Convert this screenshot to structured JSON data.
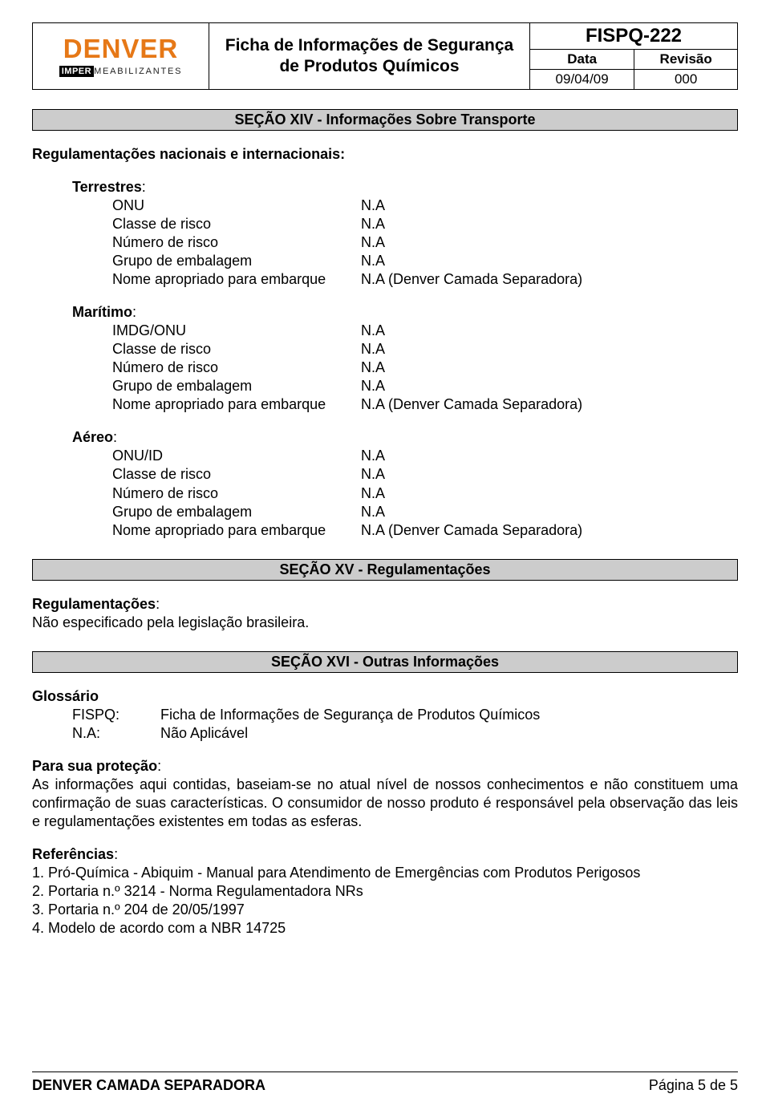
{
  "header": {
    "logo_top": "DENVER",
    "logo_imper": "IMPER",
    "logo_rest": "MEABILIZANTES",
    "title_line1": "Ficha de Informações de Segurança",
    "title_line2": "de Produtos Químicos",
    "fispq": "FISPQ-222",
    "data_label": "Data",
    "revisao_label": "Revisão",
    "data_value": "09/04/09",
    "revisao_value": "000"
  },
  "section14": {
    "title": "SEÇÃO XIV - Informações Sobre Transporte",
    "reg_heading": "Regulamentações nacionais e internacionais:",
    "terrestres": {
      "label": "Terrestres",
      "rows": [
        {
          "k": "ONU",
          "v": "N.A"
        },
        {
          "k": "Classe de risco",
          "v": "N.A"
        },
        {
          "k": "Número de risco",
          "v": "N.A"
        },
        {
          "k": "Grupo de embalagem",
          "v": "N.A"
        },
        {
          "k": "Nome apropriado para embarque",
          "v": "N.A (Denver Camada Separadora)"
        }
      ]
    },
    "maritimo": {
      "label": "Marítimo",
      "rows": [
        {
          "k": "IMDG/ONU",
          "v": "N.A"
        },
        {
          "k": "Classe de risco",
          "v": "N.A"
        },
        {
          "k": "Número de risco",
          "v": "N.A"
        },
        {
          "k": "Grupo de embalagem",
          "v": "N.A"
        },
        {
          "k": "Nome apropriado para embarque",
          "v": "N.A (Denver Camada Separadora)"
        }
      ]
    },
    "aereo": {
      "label": "Aéreo",
      "rows": [
        {
          "k": "ONU/ID",
          "v": "N.A"
        },
        {
          "k": "Classe de risco",
          "v": "N.A"
        },
        {
          "k": "Número de risco",
          "v": "N.A"
        },
        {
          "k": "Grupo de embalagem",
          "v": "N.A"
        },
        {
          "k": "Nome apropriado para embarque",
          "v": "N.A (Denver Camada Separadora)"
        }
      ]
    }
  },
  "section15": {
    "title": "SEÇÃO XV - Regulamentações",
    "heading": "Regulamentações",
    "text": "Não especificado pela legislação brasileira."
  },
  "section16": {
    "title": "SEÇÃO XVI - Outras Informações",
    "glossario_label": "Glossário",
    "gloss_rows": [
      {
        "k": "FISPQ:",
        "v": "Ficha de Informações de Segurança de Produtos Químicos"
      },
      {
        "k": "N.A:",
        "v": "Não Aplicável"
      }
    ],
    "protecao_heading": "Para sua proteção",
    "protecao_text": "As informações aqui contidas, baseiam-se no atual nível de nossos conhecimentos e não constituem uma confirmação de suas características. O consumidor de nosso produto é responsável pela observação das leis e regulamentações existentes em todas as esferas.",
    "referencias_heading": "Referências",
    "referencias": [
      "1. Pró-Química - Abiquim - Manual para Atendimento de Emergências com Produtos Perigosos",
      "2. Portaria n.º 3214 - Norma Regulamentadora NRs",
      "3. Portaria n.º 204 de 20/05/1997",
      "4. Modelo de acordo com a NBR 14725"
    ]
  },
  "footer": {
    "left": "DENVER CAMADA SEPARADORA",
    "right": "Página 5 de 5"
  },
  "colors": {
    "logo_orange": "#e67817",
    "section_bg": "#cccccc",
    "text": "#000000",
    "background": "#ffffff"
  },
  "typography": {
    "body_fontsize": 18,
    "section_title_fontsize": 18,
    "header_title_fontsize": 21,
    "fispq_fontsize": 24,
    "logo_fontsize": 33
  },
  "colon": ":"
}
